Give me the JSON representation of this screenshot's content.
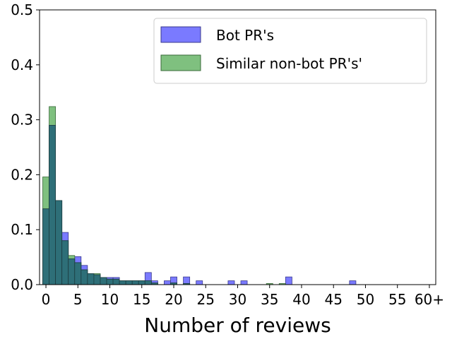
{
  "chart_data": {
    "type": "bar",
    "subtype": "overlapping-histogram",
    "title": "",
    "xlabel": "Number of reviews",
    "ylabel": "",
    "xlim": [
      -1,
      61
    ],
    "ylim": [
      0,
      0.5
    ],
    "x_ticks": [
      {
        "value": 0,
        "label": "0"
      },
      {
        "value": 5,
        "label": "5"
      },
      {
        "value": 10,
        "label": "10"
      },
      {
        "value": 15,
        "label": "15"
      },
      {
        "value": 20,
        "label": "20"
      },
      {
        "value": 25,
        "label": "25"
      },
      {
        "value": 30,
        "label": "30"
      },
      {
        "value": 35,
        "label": "35"
      },
      {
        "value": 40,
        "label": "40"
      },
      {
        "value": 45,
        "label": "45"
      },
      {
        "value": 50,
        "label": "50"
      },
      {
        "value": 55,
        "label": "55"
      },
      {
        "value": 60,
        "label": "60+"
      }
    ],
    "y_ticks": [
      {
        "value": 0.0,
        "label": "0.0"
      },
      {
        "value": 0.1,
        "label": "0.1"
      },
      {
        "value": 0.2,
        "label": "0.2"
      },
      {
        "value": 0.3,
        "label": "0.3"
      },
      {
        "value": 0.4,
        "label": "0.4"
      },
      {
        "value": 0.5,
        "label": "0.5"
      }
    ],
    "grid": false,
    "legend_position": "top-right",
    "bin_width": 1,
    "overlap_color": "#2e6f78",
    "series": [
      {
        "name": "Bot PR's",
        "color": "#7a7aff",
        "edge_color": "#3a3a8c",
        "bins": [
          {
            "x": 0,
            "value": 0.138
          },
          {
            "x": 1,
            "value": 0.29
          },
          {
            "x": 2,
            "value": 0.153
          },
          {
            "x": 3,
            "value": 0.095
          },
          {
            "x": 4,
            "value": 0.047
          },
          {
            "x": 5,
            "value": 0.051
          },
          {
            "x": 6,
            "value": 0.035
          },
          {
            "x": 7,
            "value": 0.02
          },
          {
            "x": 8,
            "value": 0.018
          },
          {
            "x": 9,
            "value": 0.013
          },
          {
            "x": 10,
            "value": 0.013
          },
          {
            "x": 11,
            "value": 0.013
          },
          {
            "x": 12,
            "value": 0.007
          },
          {
            "x": 13,
            "value": 0.007
          },
          {
            "x": 14,
            "value": 0.007
          },
          {
            "x": 15,
            "value": 0.007
          },
          {
            "x": 16,
            "value": 0.022
          },
          {
            "x": 17,
            "value": 0.007
          },
          {
            "x": 19,
            "value": 0.007
          },
          {
            "x": 20,
            "value": 0.014
          },
          {
            "x": 22,
            "value": 0.014
          },
          {
            "x": 24,
            "value": 0.007
          },
          {
            "x": 29,
            "value": 0.007
          },
          {
            "x": 31,
            "value": 0.007
          },
          {
            "x": 38,
            "value": 0.014
          },
          {
            "x": 48,
            "value": 0.007
          }
        ]
      },
      {
        "name": "Similar non-bot PR's'",
        "color": "#7fc07f",
        "edge_color": "#3a6a3a",
        "bins": [
          {
            "x": 0,
            "value": 0.196
          },
          {
            "x": 1,
            "value": 0.324
          },
          {
            "x": 2,
            "value": 0.153
          },
          {
            "x": 3,
            "value": 0.08
          },
          {
            "x": 4,
            "value": 0.053
          },
          {
            "x": 5,
            "value": 0.04
          },
          {
            "x": 6,
            "value": 0.027
          },
          {
            "x": 7,
            "value": 0.02
          },
          {
            "x": 8,
            "value": 0.02
          },
          {
            "x": 9,
            "value": 0.013
          },
          {
            "x": 10,
            "value": 0.01
          },
          {
            "x": 11,
            "value": 0.01
          },
          {
            "x": 12,
            "value": 0.007
          },
          {
            "x": 13,
            "value": 0.007
          },
          {
            "x": 14,
            "value": 0.007
          },
          {
            "x": 15,
            "value": 0.007
          },
          {
            "x": 16,
            "value": 0.007
          },
          {
            "x": 17,
            "value": 0.003
          },
          {
            "x": 20,
            "value": 0.003
          },
          {
            "x": 22,
            "value": 0.002
          },
          {
            "x": 35,
            "value": 0.002
          },
          {
            "x": 37,
            "value": 0.002
          }
        ]
      }
    ]
  }
}
